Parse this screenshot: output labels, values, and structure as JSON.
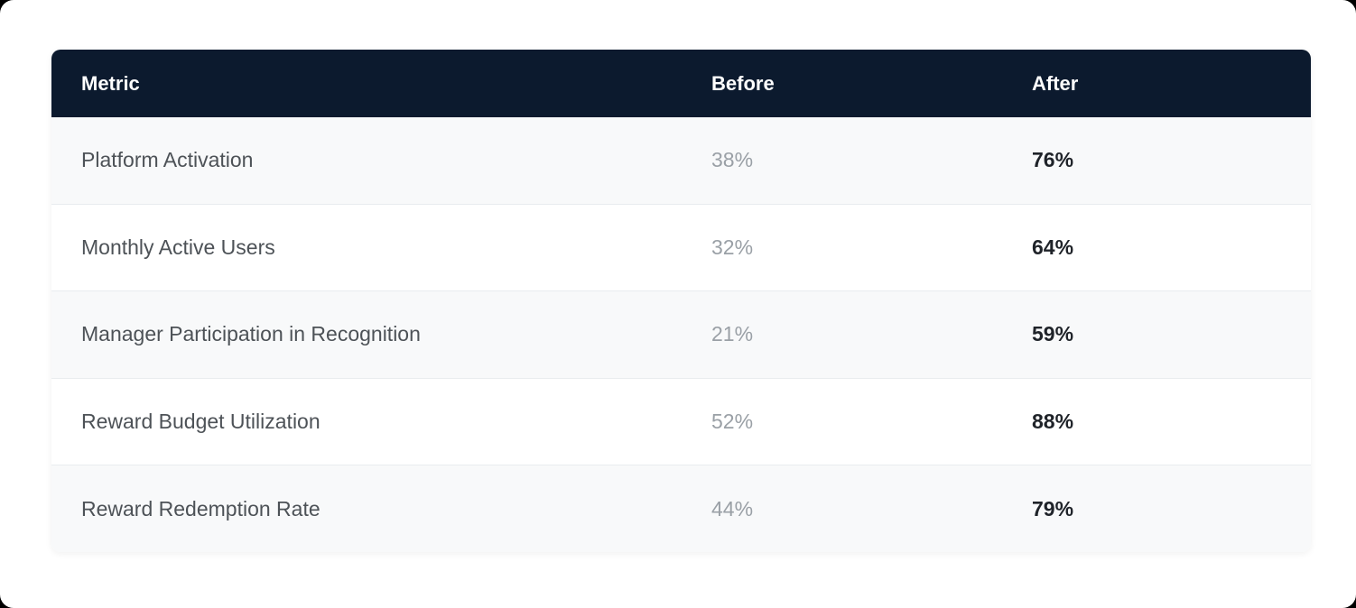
{
  "table": {
    "columns": [
      {
        "key": "metric",
        "label": "Metric"
      },
      {
        "key": "before",
        "label": "Before"
      },
      {
        "key": "after",
        "label": "After"
      }
    ],
    "rows": [
      {
        "metric": "Platform Activation",
        "before": "38%",
        "after": "76%"
      },
      {
        "metric": "Monthly Active Users",
        "before": "32%",
        "after": "64%"
      },
      {
        "metric": "Manager Participation in Recognition",
        "before": "21%",
        "after": "59%"
      },
      {
        "metric": "Reward Budget Utilization",
        "before": "52%",
        "after": "88%"
      },
      {
        "metric": "Reward Redemption Rate",
        "before": "44%",
        "after": "79%"
      }
    ],
    "colors": {
      "header_bg": "#0c1a2e",
      "header_text": "#ffffff",
      "row_bg": "#ffffff",
      "row_alt_bg": "#f8f9fa",
      "row_divider": "#e9ecef",
      "metric_text": "#4d5257",
      "before_text": "#9aa0a6",
      "after_text": "#1f2329",
      "page_bg": "#ffffff"
    }
  },
  "chart_data": {
    "type": "table",
    "columns": [
      "Metric",
      "Before",
      "After"
    ],
    "categories": [
      "Platform Activation",
      "Monthly Active Users",
      "Manager Participation in Recognition",
      "Reward Budget Utilization",
      "Reward Redemption Rate"
    ],
    "series": [
      {
        "name": "Before",
        "values": [
          38,
          32,
          21,
          52,
          44
        ]
      },
      {
        "name": "After",
        "values": [
          76,
          64,
          59,
          88,
          79
        ]
      }
    ],
    "value_unit": "%",
    "legend_position": "none",
    "grid": false
  }
}
